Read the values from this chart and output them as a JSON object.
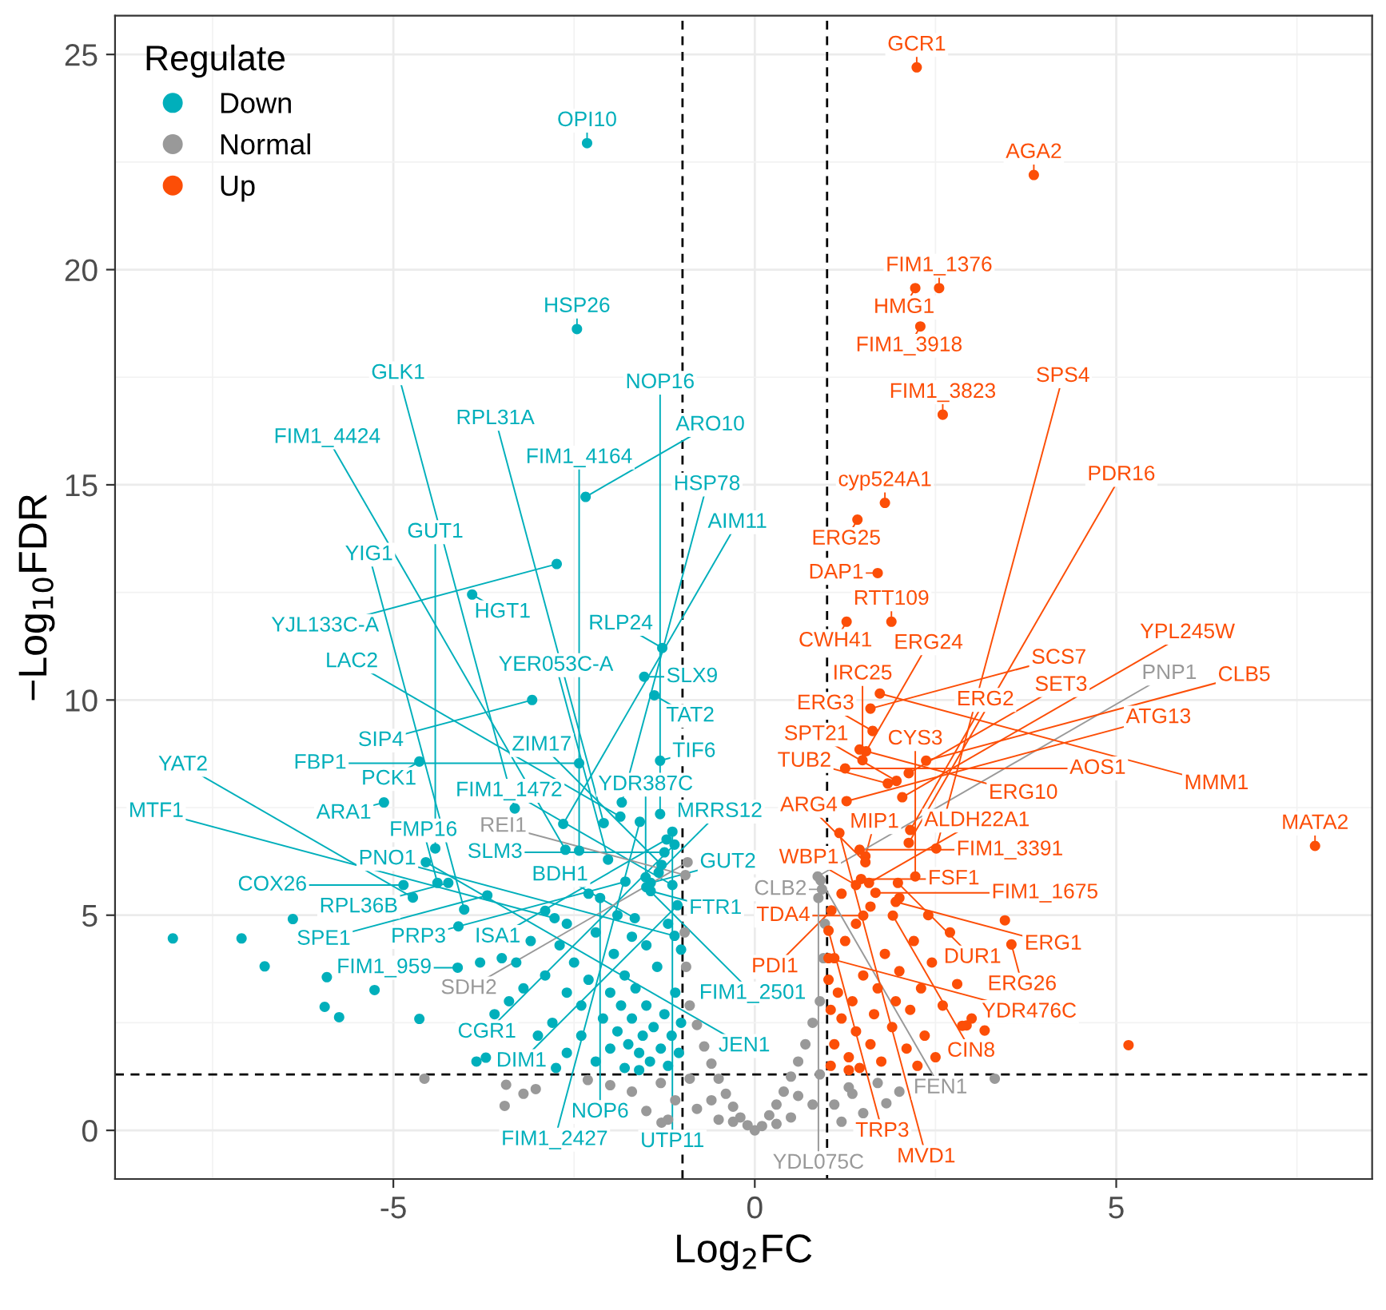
{
  "chart_data": {
    "type": "scatter",
    "xlabel": "Log$_{2}$FC",
    "ylabel": "−Log$_{10}$FDR",
    "legend_title": "Regulate",
    "xlim": [
      -8.85,
      8.54
    ],
    "ylim": [
      -1.13,
      25.9
    ],
    "xticks": [
      -5,
      0,
      5
    ],
    "yticks": [
      0,
      5,
      10,
      15,
      20,
      25
    ],
    "grid": true,
    "legend": "top left",
    "marker": "circle",
    "ref_lines": [
      {
        "axis": "x",
        "value": -1,
        "color": "#000000",
        "line_style": "dashed"
      },
      {
        "axis": "x",
        "value": 1,
        "color": "#000000",
        "line_style": "dashed"
      },
      {
        "axis": "y",
        "value": 1.3,
        "color": "#000000",
        "line_style": "dashed"
      }
    ],
    "series": [
      {
        "name": "Down",
        "color": "#00afbb",
        "x": [
          -2.32,
          -2.46,
          -2.34,
          -2.74,
          -3.91,
          -1.28,
          -1.53,
          -1.39,
          -3.08,
          -1.22,
          -1.84,
          -2.43,
          -1.31,
          -1.59,
          -1.31,
          -1.14,
          -1.25,
          -1.86,
          -1.29,
          -1.11,
          -1.44,
          -1.5,
          -1.51,
          -1.33,
          -2.03,
          -4.64,
          -3.32,
          -2.65,
          -2.09,
          -5.13,
          -2.62,
          -2.43,
          -4.42,
          -4.39,
          -4.24,
          -1.44,
          -1.79,
          -4.86,
          -4.73,
          -4.55,
          -3.7,
          -4.02,
          -2.14,
          -1.66,
          -2.77,
          -4.11,
          -1.14,
          -1.07,
          -1.11,
          -8.05,
          -7.1,
          -6.78,
          -6.39,
          -5.92,
          -5.95,
          -5.75,
          -5.26,
          -4.64,
          -3.72,
          -4.1,
          -3.5,
          -3.3,
          -3.1,
          -2.9,
          -2.7,
          -2.6,
          -2.5,
          -2.4,
          -2.3,
          -2.2,
          -2.1,
          -2.0,
          -1.95,
          -1.9,
          -1.85,
          -1.8,
          -1.75,
          -1.7,
          -1.65,
          -1.6,
          -1.55,
          -1.5,
          -1.45,
          -1.4,
          -1.35,
          -1.3,
          -1.25,
          -1.2,
          -1.15,
          -1.1,
          -1.05,
          -1.02,
          -1.02,
          -2.8,
          -3.2,
          -3.0,
          -2.6,
          -2.4,
          -2.2,
          -2.0,
          -1.8,
          -1.6,
          -3.4,
          -3.8,
          -2.9,
          -2.3,
          -1.9,
          -1.2,
          -1.5,
          -1.7,
          -2.6,
          -3.6,
          -2.75,
          -3.85
        ],
        "values": [
          22.94,
          18.62,
          14.72,
          13.16,
          12.45,
          11.21,
          10.54,
          10.11,
          10.0,
          6.76,
          7.62,
          8.53,
          8.59,
          7.17,
          7.35,
          6.94,
          6.46,
          7.29,
          6.17,
          6.64,
          5.75,
          5.65,
          5.88,
          5.99,
          6.29,
          8.57,
          7.48,
          7.12,
          7.14,
          7.62,
          6.52,
          6.5,
          6.55,
          5.75,
          5.75,
          5.56,
          5.78,
          5.7,
          5.41,
          6.23,
          5.46,
          5.13,
          5.4,
          4.93,
          4.93,
          3.78,
          5.7,
          5.23,
          4.52,
          4.46,
          4.46,
          3.81,
          4.91,
          3.56,
          2.87,
          2.63,
          3.26,
          2.59,
          1.69,
          4.74,
          4.0,
          3.9,
          4.4,
          3.6,
          4.3,
          3.2,
          3.9,
          2.9,
          3.5,
          4.6,
          2.6,
          3.2,
          4.1,
          2.3,
          2.9,
          3.6,
          2.0,
          2.6,
          3.3,
          1.8,
          2.2,
          2.9,
          1.6,
          2.4,
          3.8,
          1.9,
          2.7,
          1.5,
          2.2,
          3.2,
          1.8,
          2.5,
          4.2,
          2.5,
          3.3,
          2.2,
          1.8,
          2.2,
          1.6,
          1.9,
          1.45,
          1.4,
          3.0,
          3.9,
          5.1,
          5.5,
          5.0,
          4.8,
          4.3,
          4.5,
          4.8,
          2.7,
          1.45,
          1.6
        ]
      },
      {
        "name": "Normal",
        "color": "#999999",
        "x": [
          0.91,
          -0.93,
          0.93,
          0.88,
          -0.96,
          0.87,
          0,
          0.1,
          -0.1,
          0.2,
          -0.2,
          0.3,
          -0.3,
          0.4,
          -0.4,
          0.5,
          -0.5,
          0.6,
          -0.6,
          0.7,
          -0.7,
          0.8,
          -0.8,
          0.9,
          -0.9,
          0.95,
          -0.95,
          0.97,
          -0.97,
          0.5,
          -0.5,
          0.8,
          -0.8,
          1.1,
          -1.1,
          1.5,
          -1.5,
          1.3,
          -1.3,
          1.2,
          -1.2,
          0.9,
          -0.9,
          0.6,
          -0.6,
          1.82,
          1.35,
          3.32,
          -4.57,
          -3.44,
          -3.46,
          -3.03,
          -3.2,
          -2.31,
          -1.29,
          -1.7,
          -2.0,
          1.7,
          2.0,
          -0.3,
          0.3
        ],
        "values": [
          5.81,
          6.23,
          5.6,
          5.4,
          5.93,
          5.9,
          0,
          0.1,
          0.12,
          0.35,
          0.3,
          0.6,
          0.55,
          0.9,
          0.85,
          1.25,
          1.2,
          1.6,
          1.55,
          2.0,
          1.95,
          2.5,
          2.45,
          3.0,
          2.9,
          4.0,
          3.8,
          4.8,
          4.6,
          0.3,
          0.25,
          0.6,
          0.5,
          0.6,
          0.7,
          0.4,
          0.45,
          1.0,
          1.1,
          0.2,
          0.25,
          1.3,
          1.2,
          0.8,
          0.7,
          0.63,
          0.85,
          1.2,
          1.2,
          1.06,
          0.57,
          0.96,
          0.85,
          1.17,
          0.18,
          0.9,
          1.05,
          1.1,
          0.9,
          0.2,
          0.15
        ]
      },
      {
        "name": "Up",
        "color": "#fc4e07",
        "x": [
          2.24,
          3.86,
          2.55,
          2.22,
          2.29,
          2.6,
          1.8,
          1.42,
          1.7,
          1.27,
          1.89,
          1.6,
          1.73,
          1.63,
          1.54,
          1.45,
          1.49,
          1.25,
          1.96,
          1.84,
          2.13,
          2.37,
          2.04,
          1.27,
          1.17,
          1.45,
          1.53,
          2.15,
          2.13,
          1.53,
          2.51,
          1.47,
          1.4,
          1.58,
          1.98,
          2.22,
          1.67,
          1.95,
          3.55,
          1.91,
          1.5,
          1.06,
          1.02,
          1.02,
          7.75,
          5.17,
          2.93,
          3.18,
          2.87,
          3.46,
          1.05,
          1.1,
          1.2,
          1.15,
          1.3,
          1.4,
          1.35,
          1.5,
          1.45,
          1.6,
          1.65,
          1.7,
          1.8,
          1.75,
          1.9,
          1.95,
          2.0,
          2.1,
          2.15,
          2.2,
          2.3,
          2.35,
          2.45,
          2.5,
          2.6,
          2.7,
          1.25,
          1.1,
          1.4,
          1.6,
          1.2,
          2.4,
          2.0,
          1.02,
          1.05,
          1.3,
          2.8,
          3.0,
          2.25
        ],
        "values": [
          24.7,
          22.2,
          19.57,
          19.57,
          18.68,
          16.63,
          14.58,
          14.19,
          12.95,
          11.82,
          11.82,
          9.8,
          10.15,
          9.28,
          8.81,
          8.85,
          8.6,
          8.41,
          8.12,
          8.06,
          8.3,
          8.59,
          7.74,
          7.65,
          6.91,
          6.52,
          6.37,
          6.98,
          6.68,
          6.23,
          6.55,
          5.84,
          5.7,
          5.75,
          5.75,
          5.9,
          5.52,
          5.31,
          4.32,
          4.99,
          4.99,
          5.11,
          4.64,
          4.0,
          6.61,
          1.98,
          2.44,
          2.32,
          2.43,
          4.88,
          1.5,
          2.0,
          2.6,
          3.2,
          1.7,
          2.3,
          3.0,
          3.6,
          1.45,
          2.0,
          2.7,
          3.3,
          4.1,
          1.6,
          2.4,
          3.0,
          3.7,
          1.9,
          2.8,
          4.4,
          3.3,
          2.2,
          3.9,
          1.7,
          2.9,
          4.6,
          4.4,
          4.0,
          4.8,
          5.2,
          5.5,
          5.0,
          5.4,
          3.5,
          2.8,
          1.4,
          3.4,
          2.6,
          1.5
        ]
      }
    ],
    "annotations": [
      {
        "text": "GCR1",
        "x": 2.24,
        "y": 24.7
      },
      {
        "text": "OPI10",
        "x": -2.32,
        "y": 22.94
      },
      {
        "text": "AGA2",
        "x": 3.86,
        "y": 22.2
      },
      {
        "text": "FIM1_1376",
        "x": 2.55,
        "y": 19.57
      },
      {
        "text": "HMG1",
        "x": 2.22,
        "y": 19.57
      },
      {
        "text": "FIM1_3918",
        "x": 2.29,
        "y": 18.68
      },
      {
        "text": "HSP26",
        "x": -2.46,
        "y": 18.62
      },
      {
        "text": "FIM1_3823",
        "x": 2.6,
        "y": 16.63
      },
      {
        "text": "ARO10",
        "x": -2.34,
        "y": 14.72
      },
      {
        "text": "cyp524A1",
        "x": 1.8,
        "y": 14.58
      },
      {
        "text": "ERG25",
        "x": 1.42,
        "y": 14.19
      },
      {
        "text": "YJL133C-A",
        "x": -2.74,
        "y": 13.16
      },
      {
        "text": "DAP1",
        "x": 1.7,
        "y": 12.95
      },
      {
        "text": "HGT1",
        "x": -3.91,
        "y": 12.45
      },
      {
        "text": "CWH41",
        "x": 1.27,
        "y": 11.82
      },
      {
        "text": "RTT109",
        "x": 1.89,
        "y": 11.82
      },
      {
        "text": "RLP24",
        "x": -1.28,
        "y": 11.21
      },
      {
        "text": "SLX9",
        "x": -1.53,
        "y": 10.54
      },
      {
        "text": "MATA2",
        "x": 7.75,
        "y": 6.61
      },
      {
        "text": "TAT2",
        "x": -1.39,
        "y": 10.11
      },
      {
        "text": "SIP4",
        "x": -3.08,
        "y": 10.0
      },
      {
        "text": "MMM1",
        "x": 1.73,
        "y": 10.15
      },
      {
        "text": "SCS7",
        "x": 1.6,
        "y": 9.8
      },
      {
        "text": "ERG3",
        "x": 1.63,
        "y": 9.28
      },
      {
        "text": "ERG24",
        "x": 1.54,
        "y": 8.81
      },
      {
        "text": "ERG10",
        "x": 1.45,
        "y": 8.85
      },
      {
        "text": "IRC25",
        "x": 1.49,
        "y": 8.6
      },
      {
        "text": "AOS1",
        "x": 1.25,
        "y": 8.41
      },
      {
        "text": "CLB5",
        "x": 2.37,
        "y": 8.59
      },
      {
        "text": "SET3",
        "x": 2.13,
        "y": 8.3
      },
      {
        "text": "SPT21",
        "x": 1.96,
        "y": 8.12
      },
      {
        "text": "TUB2",
        "x": 1.84,
        "y": 8.06
      },
      {
        "text": "YPL245W",
        "x": 2.04,
        "y": 7.74
      },
      {
        "text": "ATG13",
        "x": 1.27,
        "y": 7.65
      },
      {
        "text": "PCK1",
        "x": -4.64,
        "y": 8.57
      },
      {
        "text": "ARA1",
        "x": -5.13,
        "y": 7.62
      },
      {
        "text": "FBP1",
        "x": -2.43,
        "y": 8.53
      },
      {
        "text": "TIF6",
        "x": -1.31,
        "y": 8.59
      },
      {
        "text": "HSP78",
        "x": -1.84,
        "y": 7.62
      },
      {
        "text": "GLK1",
        "x": -3.32,
        "y": 7.48
      },
      {
        "text": "GUT2",
        "x": -1.44,
        "y": 5.75
      },
      {
        "text": "YER053C-A",
        "x": -2.03,
        "y": 6.29
      },
      {
        "text": "FIM1_2427",
        "x": -1.59,
        "y": 7.17
      },
      {
        "text": "NOP16",
        "x": -1.31,
        "y": 7.35
      },
      {
        "text": "SLM3",
        "x": -1.25,
        "y": 6.46
      },
      {
        "text": "UTP11",
        "x": -1.14,
        "y": 6.94
      },
      {
        "text": "ISA1",
        "x": -1.22,
        "y": 6.76
      },
      {
        "text": "AIM11",
        "x": -2.65,
        "y": 7.12
      },
      {
        "text": "LAC2",
        "x": -1.86,
        "y": 7.29
      },
      {
        "text": "ZIM17",
        "x": -1.29,
        "y": 6.17
      },
      {
        "text": "CGR1",
        "x": -1.11,
        "y": 6.64
      },
      {
        "text": "FIM1_4424",
        "x": -2.62,
        "y": 6.52
      },
      {
        "text": "RPL31A",
        "x": -2.09,
        "y": 7.14
      },
      {
        "text": "FIM1_2501",
        "x": -1.5,
        "y": 5.65
      },
      {
        "text": "YDR387C",
        "x": -1.51,
        "y": 5.88
      },
      {
        "text": "GUT1",
        "x": -4.42,
        "y": 6.55
      },
      {
        "text": "FIM1_4164",
        "x": -2.43,
        "y": 6.5
      },
      {
        "text": "MRRS12",
        "x": -1.33,
        "y": 5.99
      },
      {
        "text": "FMP16",
        "x": -4.39,
        "y": 5.75
      },
      {
        "text": "RPL36B",
        "x": -4.24,
        "y": 5.75
      },
      {
        "text": "FTR1",
        "x": -1.44,
        "y": 5.56
      },
      {
        "text": "PRP3",
        "x": -1.79,
        "y": 5.78
      },
      {
        "text": "COX26",
        "x": -4.86,
        "y": 5.7
      },
      {
        "text": "JEN1",
        "x": -4.55,
        "y": 6.23
      },
      {
        "text": "YAT2",
        "x": -4.73,
        "y": 5.41
      },
      {
        "text": "SPE1",
        "x": -3.7,
        "y": 5.46
      },
      {
        "text": "NOP6",
        "x": -2.14,
        "y": 5.4
      },
      {
        "text": "YIG1",
        "x": -4.02,
        "y": 5.13
      },
      {
        "text": "MTF1",
        "x": -2.77,
        "y": 4.93
      },
      {
        "text": "BDH1",
        "x": -1.66,
        "y": 4.93
      },
      {
        "text": "FIM1_959",
        "x": -4.11,
        "y": 3.78
      },
      {
        "text": "FIM1_1472",
        "x": -1.14,
        "y": 5.7
      },
      {
        "text": "DIM1",
        "x": -1.07,
        "y": 5.23
      },
      {
        "text": "PNO1",
        "x": -1.11,
        "y": 4.52
      },
      {
        "text": "FEN1",
        "x": 0.91,
        "y": 5.81
      },
      {
        "text": "SDH2",
        "x": -0.93,
        "y": 6.23
      },
      {
        "text": "CLB2",
        "x": 0.93,
        "y": 5.6
      },
      {
        "text": "YDL075C",
        "x": 0.88,
        "y": 5.4
      },
      {
        "text": "REI1",
        "x": -0.96,
        "y": 5.93
      },
      {
        "text": "PNP1",
        "x": 0.87,
        "y": 5.9
      },
      {
        "text": "MVD1",
        "x": 1.17,
        "y": 6.91
      },
      {
        "text": "FIM1_3391",
        "x": 1.45,
        "y": 6.52
      },
      {
        "text": "MIP1",
        "x": 1.53,
        "y": 6.37
      },
      {
        "text": "ERG2",
        "x": 2.15,
        "y": 6.98
      },
      {
        "text": "PDR16",
        "x": 2.13,
        "y": 6.68
      },
      {
        "text": "ARG4",
        "x": 1.53,
        "y": 6.23
      },
      {
        "text": "SPS4",
        "x": 2.51,
        "y": 6.55
      },
      {
        "text": "FSF1",
        "x": 1.47,
        "y": 5.84
      },
      {
        "text": "WBP1",
        "x": 1.4,
        "y": 5.7
      },
      {
        "text": "ALDH22A1",
        "x": 1.58,
        "y": 5.75
      },
      {
        "text": "DUR1",
        "x": 1.98,
        "y": 5.75
      },
      {
        "text": "CYS3",
        "x": 2.22,
        "y": 5.9
      },
      {
        "text": "FIM1_1675",
        "x": 1.67,
        "y": 5.52
      },
      {
        "text": "ERG1",
        "x": 1.95,
        "y": 5.31
      },
      {
        "text": "ERG26",
        "x": 3.55,
        "y": 4.32
      },
      {
        "text": "CIN8",
        "x": 1.91,
        "y": 4.99
      },
      {
        "text": "TDA4",
        "x": 1.5,
        "y": 4.99
      },
      {
        "text": "PDI1",
        "x": 1.06,
        "y": 5.11
      },
      {
        "text": "TRP3",
        "x": 1.02,
        "y": 4.64
      },
      {
        "text": "YDR476C",
        "x": 1.02,
        "y": 4.0
      }
    ]
  }
}
